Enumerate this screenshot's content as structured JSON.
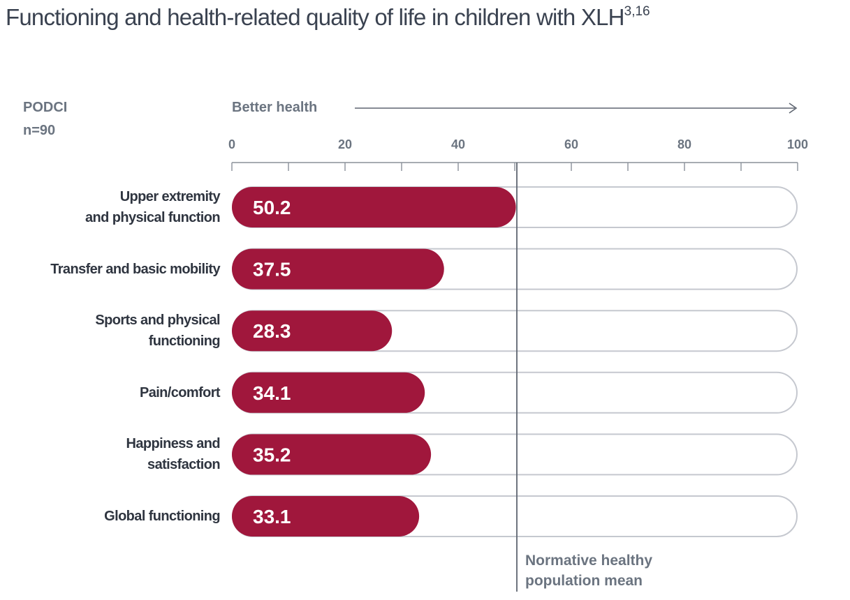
{
  "title": {
    "text": "Functioning and health-related quality of life in children with XLH",
    "superscript": "3,16"
  },
  "corner": {
    "line1": "PODCI",
    "line2": "n=90"
  },
  "colors": {
    "bar_fill": "#a0173c",
    "track_outline": "#c5c8cf",
    "axis": "#8a9099",
    "reference_line": "#5e6570"
  },
  "chart_data": {
    "type": "bar",
    "orientation": "horizontal",
    "xlabel": "Better health",
    "xlim": [
      0,
      100
    ],
    "ticks": [
      0,
      20,
      40,
      60,
      80,
      100
    ],
    "minor_ticks": [
      10,
      30,
      50,
      70,
      90
    ],
    "categories": [
      [
        "Upper extremity",
        "and physical function"
      ],
      [
        "Transfer and basic mobility"
      ],
      [
        "Sports and physical",
        "functioning"
      ],
      [
        "Pain/comfort"
      ],
      [
        "Happiness and",
        "satisfaction"
      ],
      [
        "Global functioning"
      ]
    ],
    "values": [
      50.2,
      37.5,
      28.3,
      34.1,
      35.2,
      33.1
    ],
    "value_labels": [
      "50.2",
      "37.5",
      "28.3",
      "34.1",
      "35.2",
      "33.1"
    ],
    "reference": {
      "value": 50,
      "label": [
        "Normative healthy",
        "population mean"
      ]
    }
  }
}
